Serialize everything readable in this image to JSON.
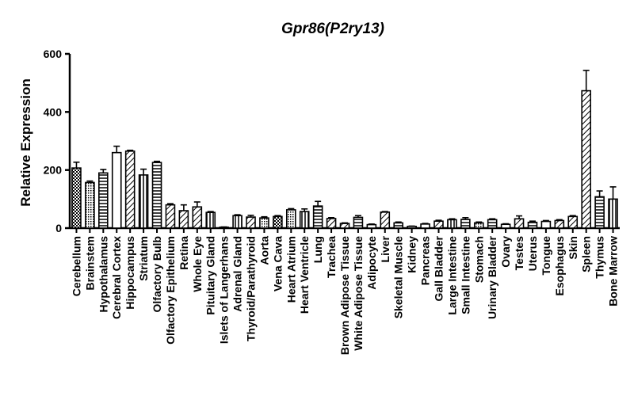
{
  "chart_data": {
    "type": "bar",
    "title": "Gpr86(P2ry13)",
    "xlabel": "",
    "ylabel": "Relative Expression",
    "ylim": [
      0,
      600
    ],
    "yticks": [
      0,
      200,
      400,
      600
    ],
    "grid": false,
    "legend": "none",
    "categories": [
      "Cerebellum",
      "Brainstem",
      "Hypothalamus",
      "Cerebral Cortex",
      "Hippocampus",
      "Striatum",
      "Olfactory Bulb",
      "Olfactory Epithelium",
      "Retina",
      "Whole Eye",
      "Pituitary Gland",
      "Islets of Langerhans",
      "Adrenal Gland",
      "Thyroid/Parathyroid",
      "Aorta",
      "Vena Cava",
      "Heart Atrium",
      "Heart Ventricle",
      "Lung",
      "Trachea",
      "Brown Adipose Tissue",
      "White Adipose Tissue",
      "Adipocyte",
      "Liver",
      "Skeletal Muscle",
      "Kidney",
      "Pancreas",
      "Gall Bladder",
      "Large Intestine",
      "Small Intestine",
      "Stomach",
      "Urinary Bladder",
      "Ovary",
      "Testes",
      "Uterus",
      "Tongue",
      "Esophagus",
      "Skin",
      "Spleen",
      "Thymus",
      "Bone Marrow"
    ],
    "values": [
      207,
      157,
      190,
      260,
      265,
      183,
      226,
      80,
      60,
      73,
      54,
      3,
      43,
      38,
      35,
      40,
      63,
      57,
      76,
      33,
      16,
      37,
      12,
      55,
      18,
      6,
      14,
      24,
      29,
      30,
      18,
      29,
      13,
      32,
      20,
      23,
      26,
      40,
      473,
      108,
      100
    ],
    "errors": [
      20,
      5,
      12,
      22,
      3,
      20,
      4,
      4,
      20,
      17,
      3,
      1,
      3,
      6,
      4,
      3,
      4,
      9,
      16,
      3,
      2,
      6,
      2,
      2,
      3,
      1,
      2,
      3,
      3,
      6,
      3,
      3,
      2,
      10,
      4,
      3,
      3,
      3,
      70,
      20,
      42
    ],
    "patterns": [
      "checker",
      "dots",
      "hlines",
      "blank",
      "diag",
      "vlines",
      "hlines",
      "diag",
      "diag",
      "diag",
      "vlines",
      "blank",
      "vlines",
      "diag",
      "dots",
      "checker",
      "dots",
      "vlines",
      "hlines",
      "diag",
      "diag",
      "hlines",
      "blank",
      "diag",
      "hlines",
      "blank",
      "blank",
      "diag",
      "vlines",
      "hlines",
      "dots",
      "hlines",
      "blank",
      "diag",
      "hlines",
      "blank",
      "diag",
      "diag",
      "diag",
      "hlines",
      "vlines"
    ]
  }
}
